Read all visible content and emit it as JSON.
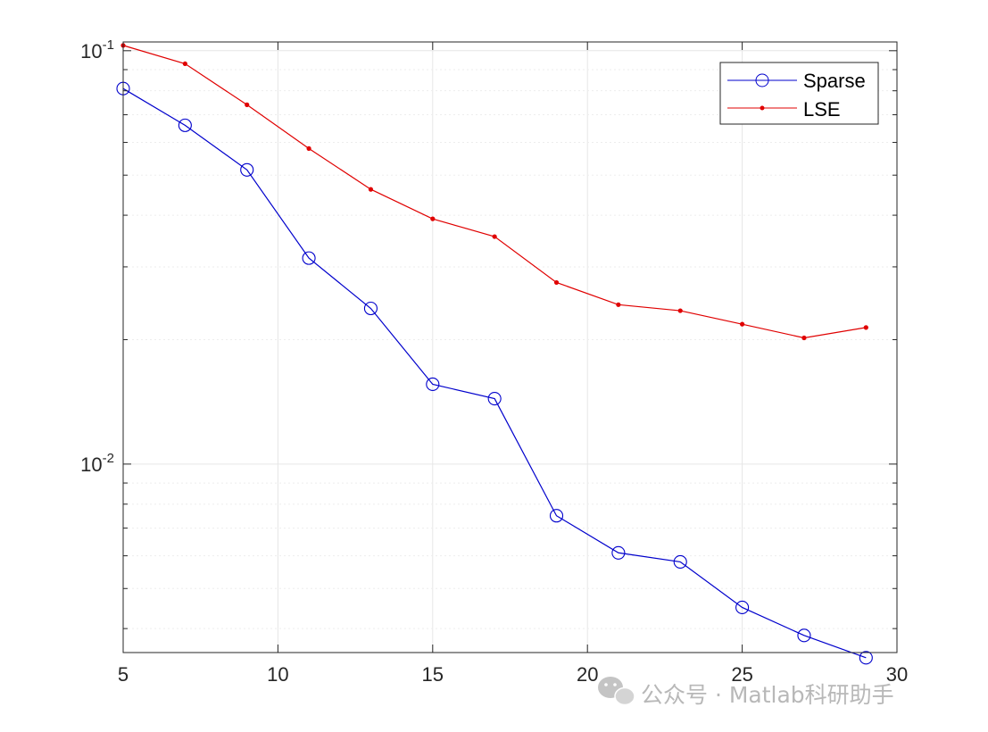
{
  "chart_data": {
    "type": "line",
    "title": "",
    "xlabel": "",
    "ylabel": "",
    "x": [
      5,
      7,
      9,
      11,
      13,
      15,
      17,
      19,
      21,
      23,
      25,
      27,
      29
    ],
    "xlim": [
      5,
      30
    ],
    "ylim": [
      0.0035,
      0.105
    ],
    "yscale": "log",
    "grid": true,
    "x_ticks": [
      {
        "value": 5,
        "label": "5"
      },
      {
        "value": 10,
        "label": "10"
      },
      {
        "value": 15,
        "label": "15"
      },
      {
        "value": 20,
        "label": "20"
      },
      {
        "value": 25,
        "label": "25"
      },
      {
        "value": 30,
        "label": "30"
      }
    ],
    "y_ticks": [
      {
        "value": 0.01,
        "base": "10",
        "exp": "-2"
      },
      {
        "value": 0.1,
        "base": "10",
        "exp": "-1"
      }
    ],
    "series": [
      {
        "name": "Sparse",
        "color": "#0000cc",
        "marker": "circle",
        "values": [
          0.081,
          0.066,
          0.0515,
          0.0315,
          0.0238,
          0.0156,
          0.0144,
          0.0075,
          0.0061,
          0.0058,
          0.0045,
          0.00385,
          0.0034
        ]
      },
      {
        "name": "LSE",
        "color": "#e00000",
        "marker": "dot",
        "values": [
          0.103,
          0.093,
          0.074,
          0.058,
          0.0462,
          0.0392,
          0.0355,
          0.0275,
          0.0243,
          0.0235,
          0.0218,
          0.0202,
          0.0214
        ]
      }
    ],
    "legend": {
      "position": "top-right"
    }
  },
  "watermark": {
    "text": "公众号 · Matlab科研助手",
    "icon": "wechat-icon"
  }
}
